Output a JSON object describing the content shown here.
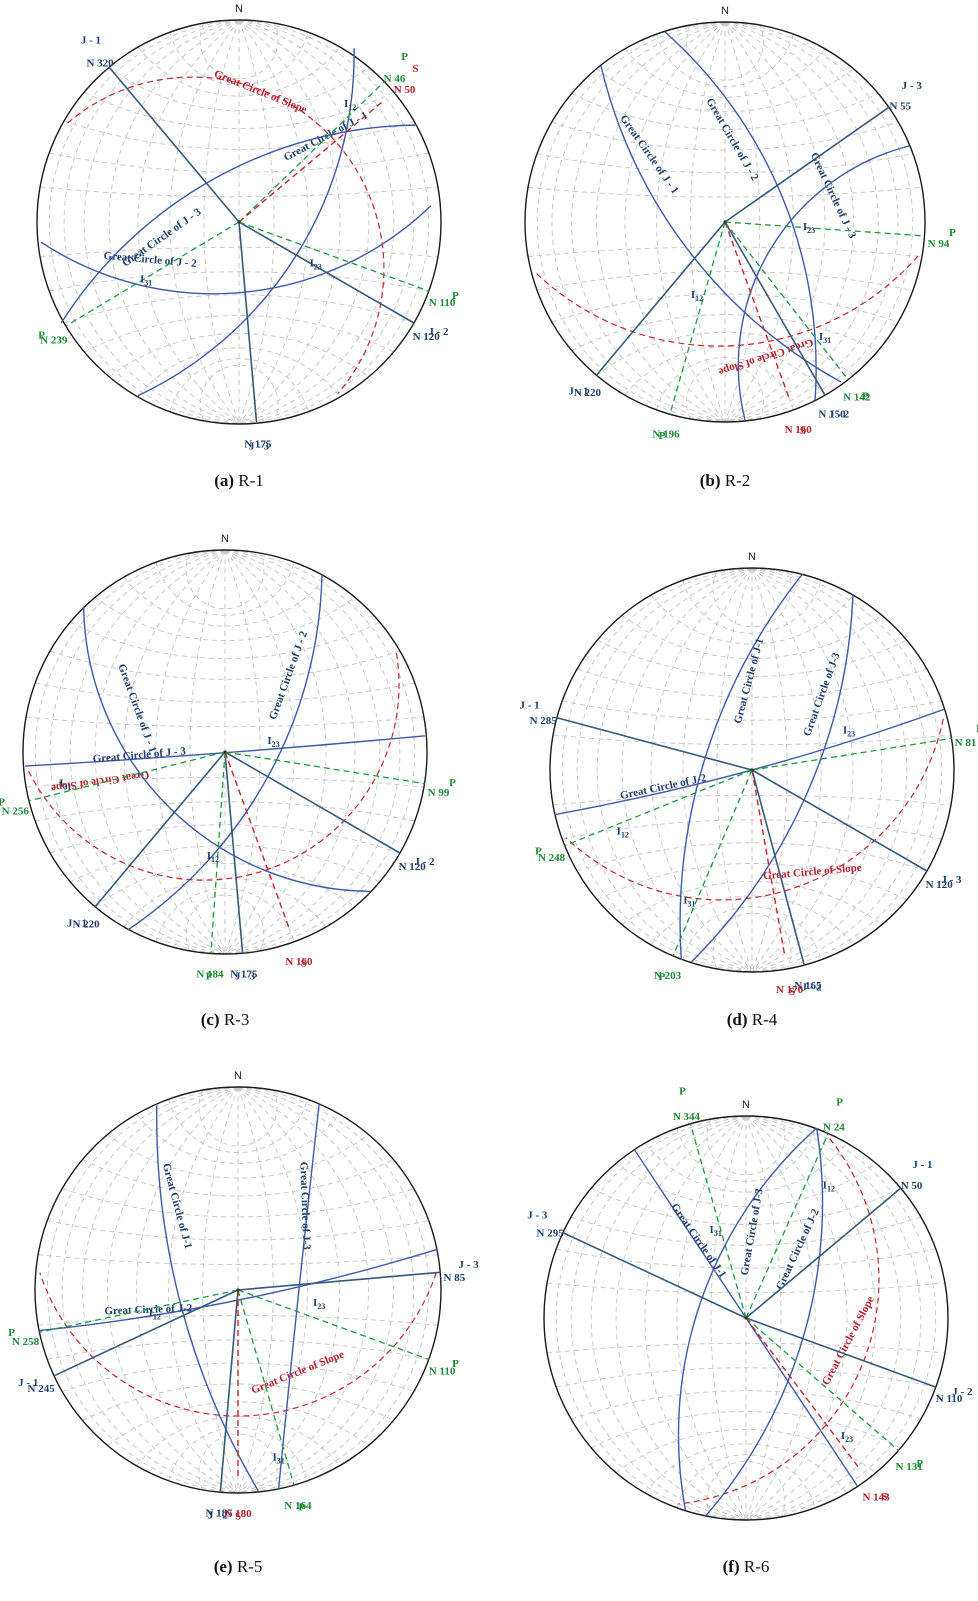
{
  "colors": {
    "outline": "#1a1a1a",
    "grid": "#c4c4c4",
    "joint": "#3d59a8",
    "strike": "#35597a",
    "plunge": "#1e9a3c",
    "slope": "#c0282c",
    "label_joint": "#1f3f6b",
    "label_plunge": "#1e8a34",
    "label_slope": "#b3202a"
  },
  "north_label": "N",
  "figures": [
    {
      "letter": "(a)",
      "name": "R-1",
      "plunges": [
        {
          "line": "P",
          "trend": "N 46"
        },
        {
          "line": "P",
          "trend": "N 110"
        },
        {
          "line": "P",
          "trend": "N 239"
        }
      ],
      "slope": {
        "line": "S",
        "trend": "N 50",
        "circle": "Great Circle of Slope"
      },
      "joints": [
        {
          "line": "J - 1",
          "trend": "N 320",
          "circle": "Great Circle of J - 1"
        },
        {
          "line": "J - 2",
          "trend": "N 120",
          "circle": "Great Circle of J - 2"
        },
        {
          "line": "J - 3",
          "trend": "N 175",
          "circle": "Great Circle of J - 3"
        }
      ],
      "intersections": [
        "I12",
        "I23",
        "I31"
      ]
    },
    {
      "letter": "(b)",
      "name": "R-2",
      "plunges": [
        {
          "line": "P",
          "trend": "N 94"
        },
        {
          "line": "P",
          "trend": "N 142"
        },
        {
          "line": "P",
          "trend": "N 196"
        }
      ],
      "slope": {
        "line": "S",
        "trend": "N 160",
        "circle": "Great Circle of Slope"
      },
      "joints": [
        {
          "line": "J - 1",
          "trend": "N 220",
          "circle": "Great Circle of J - 1"
        },
        {
          "line": "J - 2",
          "trend": "N 150",
          "circle": "Great Circle of J - 2"
        },
        {
          "line": "J - 3",
          "trend": "N 55",
          "circle": "Great Circle of J - 3"
        }
      ],
      "intersections": [
        "I12",
        "I23",
        "I31"
      ]
    },
    {
      "letter": "(c)",
      "name": "R-3",
      "plunges": [
        {
          "line": "P",
          "trend": "N 99"
        },
        {
          "line": "P",
          "trend": "N 184"
        },
        {
          "line": "P",
          "trend": "N 256"
        }
      ],
      "slope": {
        "line": "S",
        "trend": "N 160",
        "circle": "Great Circle of Slope"
      },
      "joints": [
        {
          "line": "J - 1",
          "trend": "N 220",
          "circle": "Great Circle of J - 1"
        },
        {
          "line": "J - 2",
          "trend": "N 120",
          "circle": "Great Circle of J - 2"
        },
        {
          "line": "J - 3",
          "trend": "N 175",
          "circle": "Great Circle of J - 3"
        }
      ],
      "intersections": [
        "I12",
        "I23",
        "I31"
      ]
    },
    {
      "letter": "(d)",
      "name": "R-4",
      "plunges": [
        {
          "line": "P",
          "trend": "N 81"
        },
        {
          "line": "P",
          "trend": "N 203"
        },
        {
          "line": "P",
          "trend": "N 248"
        }
      ],
      "slope": {
        "line": "S",
        "trend": "N 170",
        "circle": "Great Circle of Slope"
      },
      "joints": [
        {
          "line": "J - 1",
          "trend": "N 285",
          "circle": "Great Circle of J-1"
        },
        {
          "line": "J - 2",
          "trend": "N 165",
          "circle": "Great Circle of J-2"
        },
        {
          "line": "J - 3",
          "trend": "N 120",
          "circle": "Great Circle of J-3"
        }
      ],
      "intersections": [
        "I12",
        "I23",
        "I31"
      ]
    },
    {
      "letter": "(e)",
      "name": "R-5",
      "plunges": [
        {
          "line": "P",
          "trend": "N 110"
        },
        {
          "line": "P",
          "trend": "N 164"
        },
        {
          "line": "P",
          "trend": "N 258"
        }
      ],
      "slope": {
        "line": "S",
        "trend": "N 180",
        "circle": "Great Circle of Slope"
      },
      "joints": [
        {
          "line": "J - 1",
          "trend": "N 245",
          "circle": "Great Circle of J-1"
        },
        {
          "line": "J - 2",
          "trend": "N 185",
          "circle": "Great Circle of J-2"
        },
        {
          "line": "J - 3",
          "trend": "N 85",
          "circle": "Great Circle of J-3"
        }
      ],
      "intersections": [
        "I12",
        "I23",
        "I31"
      ]
    },
    {
      "letter": "(f)",
      "name": "R-6",
      "plunges": [
        {
          "line": "P",
          "trend": "N 24"
        },
        {
          "line": "P",
          "trend": "N 131"
        },
        {
          "line": "P",
          "trend": "N 344"
        }
      ],
      "slope": {
        "line": "S",
        "trend": "N 143",
        "circle": "Great Circle of Slope"
      },
      "joints": [
        {
          "line": "J - 1",
          "trend": "N 50",
          "circle": "Great Circle of J-1"
        },
        {
          "line": "J - 2",
          "trend": "N 110",
          "circle": "Great Circle of J-2"
        },
        {
          "line": "J - 3",
          "trend": "N 295",
          "circle": "Great Circle of J-3"
        }
      ],
      "intersections": [
        "I12",
        "I23",
        "I31"
      ]
    }
  ]
}
